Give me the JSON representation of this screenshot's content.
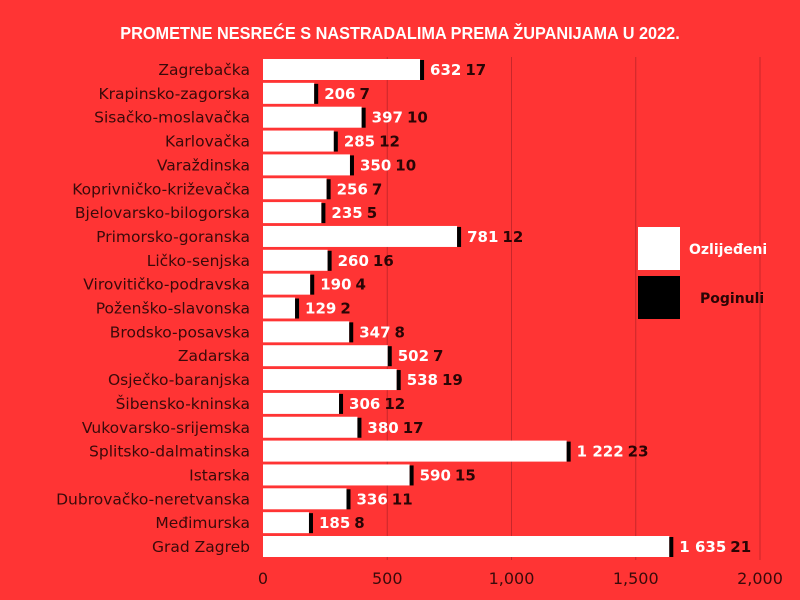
{
  "chart_data": {
    "type": "bar",
    "orientation": "horizontal",
    "stacked": true,
    "title": "PROMETNE NESREĆE S NASTRADALIMA PREMA ŽUPANIJAMA U 2022.",
    "xlabel": "",
    "ylabel": "",
    "xlim": [
      0,
      2000
    ],
    "x_ticks": [
      "0",
      "500",
      "1,000",
      "1,500",
      "2,000"
    ],
    "x_tick_values": [
      0,
      500,
      1000,
      1500,
      2000
    ],
    "grid": true,
    "legend_position": "right",
    "categories": [
      "Zagrebačka",
      "Krapinsko-zagorska",
      "Sisačko-moslavačka",
      "Karlovačka",
      "Varaždinska",
      "Koprivničko-križevačka",
      "Bjelovarsko-bilogorska",
      "Primorsko-goranska",
      "Ličko-senjska",
      "Virovitičko-podravska",
      "Poženško-slavonska",
      "Brodsko-posavska",
      "Zadarska",
      "Osječko-baranjska",
      "Šibensko-kninska",
      "Vukovarsko-srijemska",
      "Splitsko-dalmatinska",
      "Istarska",
      "Dubrovačko-neretvanska",
      "Međimurska",
      "Grad Zagreb"
    ],
    "series": [
      {
        "name": "Ozlijeđeni",
        "color": "#ffffff",
        "values": [
          632,
          206,
          397,
          285,
          350,
          256,
          235,
          781,
          260,
          190,
          129,
          347,
          502,
          538,
          306,
          380,
          1222,
          590,
          336,
          185,
          1635
        ],
        "labels": [
          "632",
          "206",
          "397",
          "285",
          "350",
          "256",
          "235",
          "781",
          "260",
          "190",
          "129",
          "347",
          "502",
          "538",
          "306",
          "380",
          "1 222",
          "590",
          "336",
          "185",
          "1 635"
        ]
      },
      {
        "name": "Poginuli",
        "color": "#000000",
        "values": [
          17,
          7,
          10,
          12,
          10,
          7,
          5,
          12,
          16,
          4,
          2,
          8,
          7,
          19,
          12,
          17,
          23,
          15,
          11,
          8,
          21
        ],
        "labels": [
          "17",
          "7",
          "10",
          "12",
          "10",
          "7",
          "5",
          "12",
          "16",
          "4",
          "2",
          "8",
          "7",
          "19",
          "12",
          "17",
          "23",
          "15",
          "11",
          "8",
          "21"
        ]
      }
    ]
  },
  "colors": {
    "background": "#ff3434",
    "gridline": "#c8262a",
    "label_text": "#3a0a0a"
  }
}
